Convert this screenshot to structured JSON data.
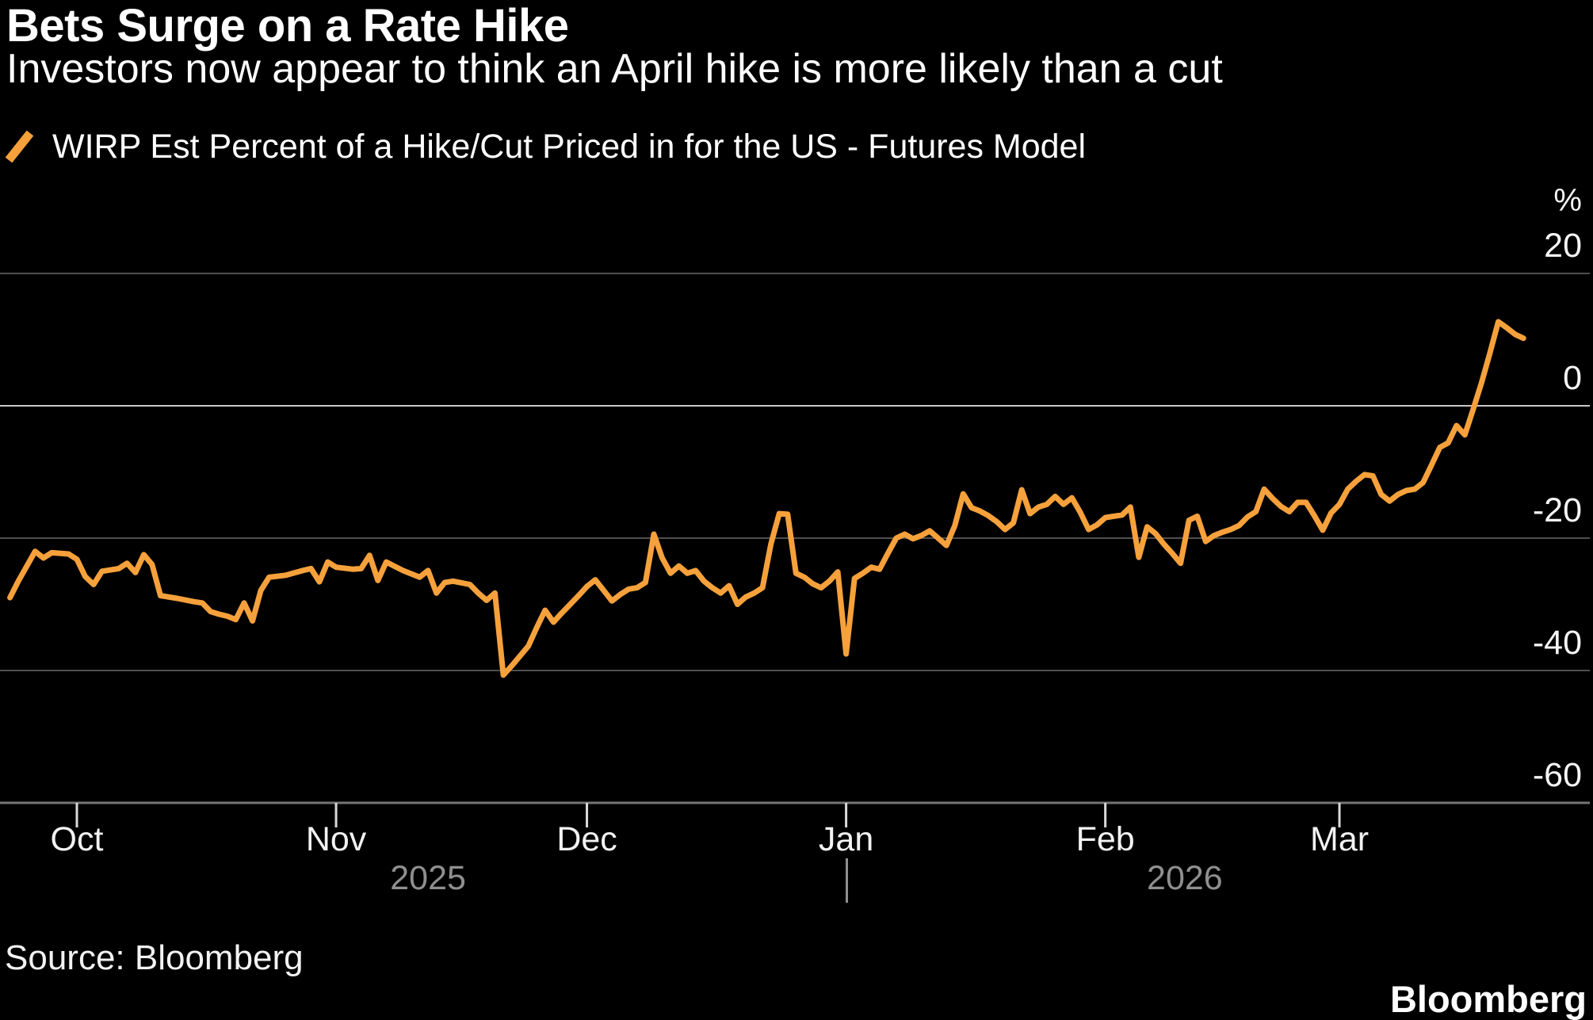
{
  "footer": {
    "source": "Source: Bloomberg",
    "brand": "Bloomberg"
  },
  "colors": {
    "background": "#000000",
    "line": "#F6A13B",
    "gridline": "#4F4F4F",
    "zero_line": "#C8C8C8",
    "axis_line": "#767676",
    "tick": "#D9D9D9",
    "month_label": "#F2F2F2",
    "year_label": "#8F8F8F",
    "y_label": "#F5F5F5",
    "title": "#FFFFFF"
  },
  "chart_data": {
    "type": "line",
    "title": "Bets Surge on a Rate Hike",
    "subtitle": "Investors now appear to think an April hike is more likely than a cut",
    "unit": "%",
    "ylim": [
      -60,
      25
    ],
    "grid": "horizontal",
    "legend_position": "top-left",
    "y_axis": {
      "unit_label": "%",
      "ticks": [
        {
          "value": 20,
          "label": "20"
        },
        {
          "value": 0,
          "label": "0",
          "emphasis": true
        },
        {
          "value": -20,
          "label": "-20"
        },
        {
          "value": -40,
          "label": "-40"
        },
        {
          "value": -60,
          "label": "-60",
          "axis_baseline": true
        }
      ]
    },
    "x_axis": {
      "origin_date": "2025-10-01",
      "start_date": "2025-09-23",
      "end_date": "2026-03-23",
      "ticks": [
        {
          "date": "2025-10-01",
          "label": "Oct"
        },
        {
          "date": "2025-11-01",
          "label": "Nov"
        },
        {
          "date": "2025-12-01",
          "label": "Dec"
        },
        {
          "date": "2026-01-01",
          "label": "Jan"
        },
        {
          "date": "2026-02-01",
          "label": "Feb"
        },
        {
          "date": "2026-03-01",
          "label": "Mar"
        }
      ],
      "year_boundary_date": "2026-01-01",
      "year_labels": [
        "2025",
        "2026"
      ],
      "year_separator": "|"
    },
    "series": [
      {
        "name": "WIRP Est Percent of a Hike/Cut Priced in for the US - Futures Model",
        "color": "#F6A13B",
        "points": [
          [
            "2025-09-23",
            -29.0
          ],
          [
            "2025-09-24",
            -26.5
          ],
          [
            "2025-09-26",
            -22.0
          ],
          [
            "2025-09-27",
            -23.0
          ],
          [
            "2025-09-28",
            -22.2
          ],
          [
            "2025-09-30",
            -22.4
          ],
          [
            "2025-10-01",
            -23.2
          ],
          [
            "2025-10-02",
            -25.8
          ],
          [
            "2025-10-03",
            -27.0
          ],
          [
            "2025-10-04",
            -25.0
          ],
          [
            "2025-10-06",
            -24.6
          ],
          [
            "2025-10-07",
            -23.8
          ],
          [
            "2025-10-08",
            -25.2
          ],
          [
            "2025-10-09",
            -22.5
          ],
          [
            "2025-10-10",
            -24.0
          ],
          [
            "2025-10-11",
            -28.7
          ],
          [
            "2025-10-13",
            -29.1
          ],
          [
            "2025-10-15",
            -29.6
          ],
          [
            "2025-10-16",
            -29.8
          ],
          [
            "2025-10-17",
            -31.1
          ],
          [
            "2025-10-18",
            -31.5
          ],
          [
            "2025-10-19",
            -31.8
          ],
          [
            "2025-10-20",
            -32.3
          ],
          [
            "2025-10-21",
            -29.8
          ],
          [
            "2025-10-22",
            -32.5
          ],
          [
            "2025-10-23",
            -27.9
          ],
          [
            "2025-10-24",
            -25.9
          ],
          [
            "2025-10-26",
            -25.6
          ],
          [
            "2025-10-28",
            -24.9
          ],
          [
            "2025-10-29",
            -24.6
          ],
          [
            "2025-10-30",
            -26.6
          ],
          [
            "2025-10-31",
            -23.6
          ],
          [
            "2025-11-01",
            -24.4
          ],
          [
            "2025-11-03",
            -24.7
          ],
          [
            "2025-11-04",
            -24.6
          ],
          [
            "2025-11-05",
            -22.6
          ],
          [
            "2025-11-06",
            -26.4
          ],
          [
            "2025-11-07",
            -23.6
          ],
          [
            "2025-11-09",
            -24.9
          ],
          [
            "2025-11-11",
            -25.9
          ],
          [
            "2025-11-12",
            -24.9
          ],
          [
            "2025-11-13",
            -28.3
          ],
          [
            "2025-11-14",
            -26.7
          ],
          [
            "2025-11-15",
            -26.5
          ],
          [
            "2025-11-17",
            -27.0
          ],
          [
            "2025-11-18",
            -28.3
          ],
          [
            "2025-11-19",
            -29.4
          ],
          [
            "2025-11-20",
            -28.3
          ],
          [
            "2025-11-21",
            -40.7
          ],
          [
            "2025-11-22",
            -39.3
          ],
          [
            "2025-11-24",
            -36.3
          ],
          [
            "2025-11-25",
            -33.5
          ],
          [
            "2025-11-26",
            -30.9
          ],
          [
            "2025-11-27",
            -32.7
          ],
          [
            "2025-11-28",
            -31.3
          ],
          [
            "2025-11-29",
            -30.0
          ],
          [
            "2025-11-30",
            -28.7
          ],
          [
            "2025-12-01",
            -27.3
          ],
          [
            "2025-12-02",
            -26.3
          ],
          [
            "2025-12-04",
            -29.5
          ],
          [
            "2025-12-05",
            -28.5
          ],
          [
            "2025-12-06",
            -27.7
          ],
          [
            "2025-12-07",
            -27.5
          ],
          [
            "2025-12-08",
            -26.7
          ],
          [
            "2025-12-09",
            -19.4
          ],
          [
            "2025-12-10",
            -23.0
          ],
          [
            "2025-12-11",
            -25.3
          ],
          [
            "2025-12-12",
            -24.2
          ],
          [
            "2025-12-13",
            -25.3
          ],
          [
            "2025-12-14",
            -24.9
          ],
          [
            "2025-12-15",
            -26.5
          ],
          [
            "2025-12-16",
            -27.5
          ],
          [
            "2025-12-17",
            -28.3
          ],
          [
            "2025-12-18",
            -27.2
          ],
          [
            "2025-12-19",
            -30.0
          ],
          [
            "2025-12-20",
            -28.9
          ],
          [
            "2025-12-21",
            -28.3
          ],
          [
            "2025-12-22",
            -27.5
          ],
          [
            "2025-12-23",
            -20.9
          ],
          [
            "2025-12-24",
            -16.3
          ],
          [
            "2025-12-25",
            -16.4
          ],
          [
            "2025-12-26",
            -25.3
          ],
          [
            "2025-12-27",
            -25.9
          ],
          [
            "2025-12-28",
            -26.9
          ],
          [
            "2025-12-29",
            -27.5
          ],
          [
            "2025-12-30",
            -26.5
          ],
          [
            "2025-12-31",
            -25.1
          ],
          [
            "2026-01-01",
            -37.5
          ],
          [
            "2026-01-02",
            -26.1
          ],
          [
            "2026-01-03",
            -25.3
          ],
          [
            "2026-01-04",
            -24.4
          ],
          [
            "2026-01-05",
            -24.7
          ],
          [
            "2026-01-06",
            -22.3
          ],
          [
            "2026-01-07",
            -20.0
          ],
          [
            "2026-01-08",
            -19.4
          ],
          [
            "2026-01-09",
            -20.1
          ],
          [
            "2026-01-10",
            -19.6
          ],
          [
            "2026-01-11",
            -18.9
          ],
          [
            "2026-01-12",
            -20.0
          ],
          [
            "2026-01-13",
            -21.1
          ],
          [
            "2026-01-14",
            -18.1
          ],
          [
            "2026-01-15",
            -13.3
          ],
          [
            "2026-01-16",
            -15.4
          ],
          [
            "2026-01-17",
            -15.9
          ],
          [
            "2026-01-18",
            -16.6
          ],
          [
            "2026-01-19",
            -17.5
          ],
          [
            "2026-01-20",
            -18.7
          ],
          [
            "2026-01-21",
            -17.7
          ],
          [
            "2026-01-22",
            -12.7
          ],
          [
            "2026-01-23",
            -16.3
          ],
          [
            "2026-01-24",
            -15.3
          ],
          [
            "2026-01-25",
            -14.9
          ],
          [
            "2026-01-26",
            -13.7
          ],
          [
            "2026-01-27",
            -14.9
          ],
          [
            "2026-01-28",
            -13.9
          ],
          [
            "2026-01-29",
            -16.1
          ],
          [
            "2026-01-30",
            -18.7
          ],
          [
            "2026-01-31",
            -18.0
          ],
          [
            "2026-02-01",
            -16.9
          ],
          [
            "2026-02-02",
            -16.7
          ],
          [
            "2026-02-03",
            -16.5
          ],
          [
            "2026-02-04",
            -15.3
          ],
          [
            "2026-02-05",
            -22.9
          ],
          [
            "2026-02-06",
            -18.3
          ],
          [
            "2026-02-07",
            -19.3
          ],
          [
            "2026-02-08",
            -20.9
          ],
          [
            "2026-02-09",
            -22.3
          ],
          [
            "2026-02-10",
            -23.8
          ],
          [
            "2026-02-11",
            -17.3
          ],
          [
            "2026-02-12",
            -16.7
          ],
          [
            "2026-02-13",
            -20.5
          ],
          [
            "2026-02-14",
            -19.6
          ],
          [
            "2026-02-15",
            -19.1
          ],
          [
            "2026-02-16",
            -18.7
          ],
          [
            "2026-02-17",
            -18.1
          ],
          [
            "2026-02-18",
            -16.8
          ],
          [
            "2026-02-19",
            -16.0
          ],
          [
            "2026-02-20",
            -12.6
          ],
          [
            "2026-02-21",
            -14.0
          ],
          [
            "2026-02-22",
            -15.2
          ],
          [
            "2026-02-23",
            -16.0
          ],
          [
            "2026-02-24",
            -14.6
          ],
          [
            "2026-02-25",
            -14.6
          ],
          [
            "2026-02-26",
            -16.6
          ],
          [
            "2026-02-27",
            -18.8
          ],
          [
            "2026-02-28",
            -16.2
          ],
          [
            "2026-03-01",
            -14.9
          ],
          [
            "2026-03-02",
            -12.6
          ],
          [
            "2026-03-03",
            -11.4
          ],
          [
            "2026-03-04",
            -10.4
          ],
          [
            "2026-03-05",
            -10.6
          ],
          [
            "2026-03-06",
            -13.4
          ],
          [
            "2026-03-07",
            -14.4
          ],
          [
            "2026-03-08",
            -13.4
          ],
          [
            "2026-03-09",
            -12.8
          ],
          [
            "2026-03-10",
            -12.6
          ],
          [
            "2026-03-11",
            -11.6
          ],
          [
            "2026-03-12",
            -9.0
          ],
          [
            "2026-03-13",
            -6.3
          ],
          [
            "2026-03-14",
            -5.6
          ],
          [
            "2026-03-15",
            -3.0
          ],
          [
            "2026-03-16",
            -4.4
          ],
          [
            "2026-03-17",
            -0.5
          ],
          [
            "2026-03-18",
            3.5
          ],
          [
            "2026-03-19",
            8.0
          ],
          [
            "2026-03-20",
            12.7
          ],
          [
            "2026-03-21",
            11.8
          ],
          [
            "2026-03-22",
            10.8
          ],
          [
            "2026-03-23",
            10.2
          ]
        ]
      }
    ]
  }
}
